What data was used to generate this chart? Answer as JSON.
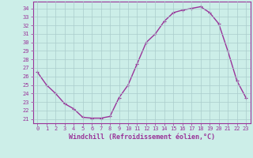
{
  "x": [
    0,
    1,
    2,
    3,
    4,
    5,
    6,
    7,
    8,
    9,
    10,
    11,
    12,
    13,
    14,
    15,
    16,
    17,
    18,
    19,
    20,
    21,
    22,
    23
  ],
  "y": [
    26.5,
    25.0,
    24.0,
    22.8,
    22.2,
    21.2,
    21.1,
    21.1,
    21.3,
    23.5,
    25.0,
    27.5,
    30.0,
    31.0,
    32.5,
    33.5,
    33.8,
    34.0,
    34.2,
    33.5,
    32.2,
    29.0,
    25.5,
    23.5
  ],
  "line_color": "#993399",
  "marker": "+",
  "marker_color": "#993399",
  "bg_color": "#cceee8",
  "grid_color": "#aacccc",
  "xlabel": "Windchill (Refroidissement éolien,°C)",
  "ylabel_ticks": [
    21,
    22,
    23,
    24,
    25,
    26,
    27,
    28,
    29,
    30,
    31,
    32,
    33,
    34
  ],
  "xlim": [
    -0.5,
    23.5
  ],
  "ylim": [
    20.5,
    34.8
  ],
  "axis_color": "#993399",
  "tick_color": "#993399",
  "font_size_ticks": 5.0,
  "font_size_xlabel": 6.0,
  "linewidth": 1.0,
  "markersize": 3.5
}
